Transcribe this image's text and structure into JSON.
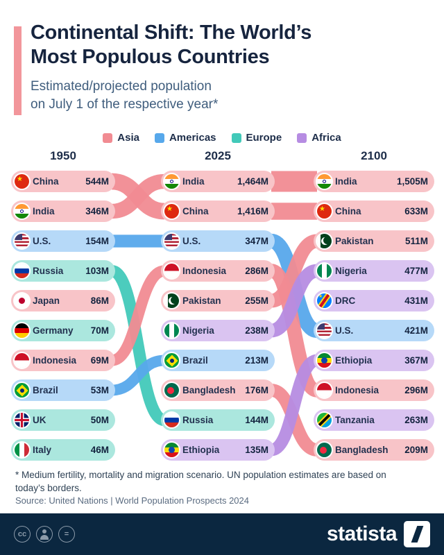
{
  "header": {
    "title_line1": "Continental Shift: The World’s",
    "title_line2": "Most Populous Countries",
    "subtitle_line1": "Estimated/projected population",
    "subtitle_line2": "on July 1 of the respective year*"
  },
  "legend": [
    {
      "label": "Asia",
      "color": "#f18b92"
    },
    {
      "label": "Americas",
      "color": "#57a8eb"
    },
    {
      "label": "Europe",
      "color": "#42c9b9"
    },
    {
      "label": "Africa",
      "color": "#b68ce2"
    }
  ],
  "continent_colors": {
    "asia": {
      "pill": "#f8c4c8",
      "ribbon": "#f18b92"
    },
    "americas": {
      "pill": "#b6d9f8",
      "ribbon": "#57a8eb"
    },
    "europe": {
      "pill": "#abe7de",
      "ribbon": "#42c9b9"
    },
    "africa": {
      "pill": "#dac4f1",
      "ribbon": "#b68ce2"
    }
  },
  "columns": [
    {
      "year": "1950",
      "entries": [
        {
          "country": "China",
          "value": "544M",
          "continent": "asia",
          "flag": "china"
        },
        {
          "country": "India",
          "value": "346M",
          "continent": "asia",
          "flag": "india"
        },
        {
          "country": "U.S.",
          "value": "154M",
          "continent": "americas",
          "flag": "us"
        },
        {
          "country": "Russia",
          "value": "103M",
          "continent": "europe",
          "flag": "russia"
        },
        {
          "country": "Japan",
          "value": "86M",
          "continent": "asia",
          "flag": "japan"
        },
        {
          "country": "Germany",
          "value": "70M",
          "continent": "europe",
          "flag": "germany"
        },
        {
          "country": "Indonesia",
          "value": "69M",
          "continent": "asia",
          "flag": "indonesia"
        },
        {
          "country": "Brazil",
          "value": "53M",
          "continent": "americas",
          "flag": "brazil"
        },
        {
          "country": "UK",
          "value": "50M",
          "continent": "europe",
          "flag": "uk"
        },
        {
          "country": "Italy",
          "value": "46M",
          "continent": "europe",
          "flag": "italy"
        }
      ]
    },
    {
      "year": "2025",
      "entries": [
        {
          "country": "India",
          "value": "1,464M",
          "continent": "asia",
          "flag": "india"
        },
        {
          "country": "China",
          "value": "1,416M",
          "continent": "asia",
          "flag": "china"
        },
        {
          "country": "U.S.",
          "value": "347M",
          "continent": "americas",
          "flag": "us"
        },
        {
          "country": "Indonesia",
          "value": "286M",
          "continent": "asia",
          "flag": "indonesia"
        },
        {
          "country": "Pakistan",
          "value": "255M",
          "continent": "asia",
          "flag": "pakistan"
        },
        {
          "country": "Nigeria",
          "value": "238M",
          "continent": "africa",
          "flag": "nigeria"
        },
        {
          "country": "Brazil",
          "value": "213M",
          "continent": "americas",
          "flag": "brazil"
        },
        {
          "country": "Bangladesh",
          "value": "176M",
          "continent": "asia",
          "flag": "bangladesh"
        },
        {
          "country": "Russia",
          "value": "144M",
          "continent": "europe",
          "flag": "russia"
        },
        {
          "country": "Ethiopia",
          "value": "135M",
          "continent": "africa",
          "flag": "ethiopia"
        }
      ]
    },
    {
      "year": "2100",
      "entries": [
        {
          "country": "India",
          "value": "1,505M",
          "continent": "asia",
          "flag": "india"
        },
        {
          "country": "China",
          "value": "633M",
          "continent": "asia",
          "flag": "china"
        },
        {
          "country": "Pakistan",
          "value": "511M",
          "continent": "asia",
          "flag": "pakistan"
        },
        {
          "country": "Nigeria",
          "value": "477M",
          "continent": "africa",
          "flag": "nigeria"
        },
        {
          "country": "DRC",
          "value": "431M",
          "continent": "africa",
          "flag": "drc"
        },
        {
          "country": "U.S.",
          "value": "421M",
          "continent": "americas",
          "flag": "us"
        },
        {
          "country": "Ethiopia",
          "value": "367M",
          "continent": "africa",
          "flag": "ethiopia"
        },
        {
          "country": "Indonesia",
          "value": "296M",
          "continent": "asia",
          "flag": "indonesia"
        },
        {
          "country": "Tanzania",
          "value": "263M",
          "continent": "africa",
          "flag": "tanzania"
        },
        {
          "country": "Bangladesh",
          "value": "209M",
          "continent": "asia",
          "flag": "bangladesh"
        }
      ]
    }
  ],
  "footnote": {
    "line1": "* Medium fertility, mortality and migration scenario. UN population estimates are based on",
    "line2": "today’s borders."
  },
  "source": "Source: United Nations | World Population Prospects 2024",
  "footer": {
    "brand": "statista",
    "cc_text": "cc",
    "equals_text": "="
  },
  "chart_data": {
    "type": "table",
    "visualization": "bump-chart of population rankings with continent-colored flows",
    "title": "Continental Shift: The World’s Most Populous Countries",
    "subtitle": "Estimated/projected population on July 1 of the respective year*",
    "unit": "millions of people",
    "years": [
      "1950",
      "2025",
      "2100"
    ],
    "continent_legend": [
      "Asia",
      "Americas",
      "Europe",
      "Africa"
    ],
    "rankings": {
      "1950": [
        {
          "rank": 1,
          "country": "China",
          "continent": "Asia",
          "population_m": 544
        },
        {
          "rank": 2,
          "country": "India",
          "continent": "Asia",
          "population_m": 346
        },
        {
          "rank": 3,
          "country": "U.S.",
          "continent": "Americas",
          "population_m": 154
        },
        {
          "rank": 4,
          "country": "Russia",
          "continent": "Europe",
          "population_m": 103
        },
        {
          "rank": 5,
          "country": "Japan",
          "continent": "Asia",
          "population_m": 86
        },
        {
          "rank": 6,
          "country": "Germany",
          "continent": "Europe",
          "population_m": 70
        },
        {
          "rank": 7,
          "country": "Indonesia",
          "continent": "Asia",
          "population_m": 69
        },
        {
          "rank": 8,
          "country": "Brazil",
          "continent": "Americas",
          "population_m": 53
        },
        {
          "rank": 9,
          "country": "UK",
          "continent": "Europe",
          "population_m": 50
        },
        {
          "rank": 10,
          "country": "Italy",
          "continent": "Europe",
          "population_m": 46
        }
      ],
      "2025": [
        {
          "rank": 1,
          "country": "India",
          "continent": "Asia",
          "population_m": 1464
        },
        {
          "rank": 2,
          "country": "China",
          "continent": "Asia",
          "population_m": 1416
        },
        {
          "rank": 3,
          "country": "U.S.",
          "continent": "Americas",
          "population_m": 347
        },
        {
          "rank": 4,
          "country": "Indonesia",
          "continent": "Asia",
          "population_m": 286
        },
        {
          "rank": 5,
          "country": "Pakistan",
          "continent": "Asia",
          "population_m": 255
        },
        {
          "rank": 6,
          "country": "Nigeria",
          "continent": "Africa",
          "population_m": 238
        },
        {
          "rank": 7,
          "country": "Brazil",
          "continent": "Americas",
          "population_m": 213
        },
        {
          "rank": 8,
          "country": "Bangladesh",
          "continent": "Asia",
          "population_m": 176
        },
        {
          "rank": 9,
          "country": "Russia",
          "continent": "Europe",
          "population_m": 144
        },
        {
          "rank": 10,
          "country": "Ethiopia",
          "continent": "Africa",
          "population_m": 135
        }
      ],
      "2100": [
        {
          "rank": 1,
          "country": "India",
          "continent": "Asia",
          "population_m": 1505
        },
        {
          "rank": 2,
          "country": "China",
          "continent": "Asia",
          "population_m": 633
        },
        {
          "rank": 3,
          "country": "Pakistan",
          "continent": "Asia",
          "population_m": 511
        },
        {
          "rank": 4,
          "country": "Nigeria",
          "continent": "Africa",
          "population_m": 477
        },
        {
          "rank": 5,
          "country": "DRC",
          "continent": "Africa",
          "population_m": 431
        },
        {
          "rank": 6,
          "country": "U.S.",
          "continent": "Americas",
          "population_m": 421
        },
        {
          "rank": 7,
          "country": "Ethiopia",
          "continent": "Africa",
          "population_m": 367
        },
        {
          "rank": 8,
          "country": "Indonesia",
          "continent": "Asia",
          "population_m": 296
        },
        {
          "rank": 9,
          "country": "Tanzania",
          "continent": "Africa",
          "population_m": 263
        },
        {
          "rank": 10,
          "country": "Bangladesh",
          "continent": "Asia",
          "population_m": 209
        }
      ]
    },
    "footnote": "* Medium fertility, mortality and migration scenario. UN population estimates are based on today’s borders.",
    "source": "Source: United Nations | World Population Prospects 2024"
  }
}
